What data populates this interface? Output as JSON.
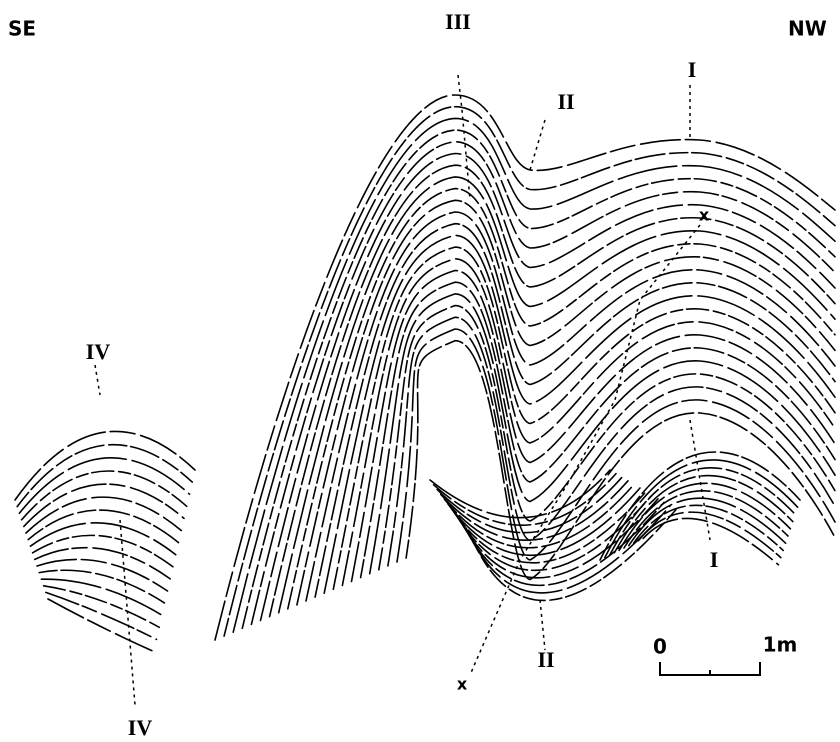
{
  "orientation": {
    "left": "SE",
    "right": "NW"
  },
  "fold_axes": [
    {
      "top": "III"
    },
    {
      "top": "II",
      "bottom": "II"
    },
    {
      "top": "I",
      "bottom": "I"
    },
    {
      "top": "x",
      "bottom": "x"
    },
    {
      "top": "IV",
      "bottom": "IV"
    }
  ],
  "scale_bar": {
    "start": "0",
    "end": "1m"
  }
}
